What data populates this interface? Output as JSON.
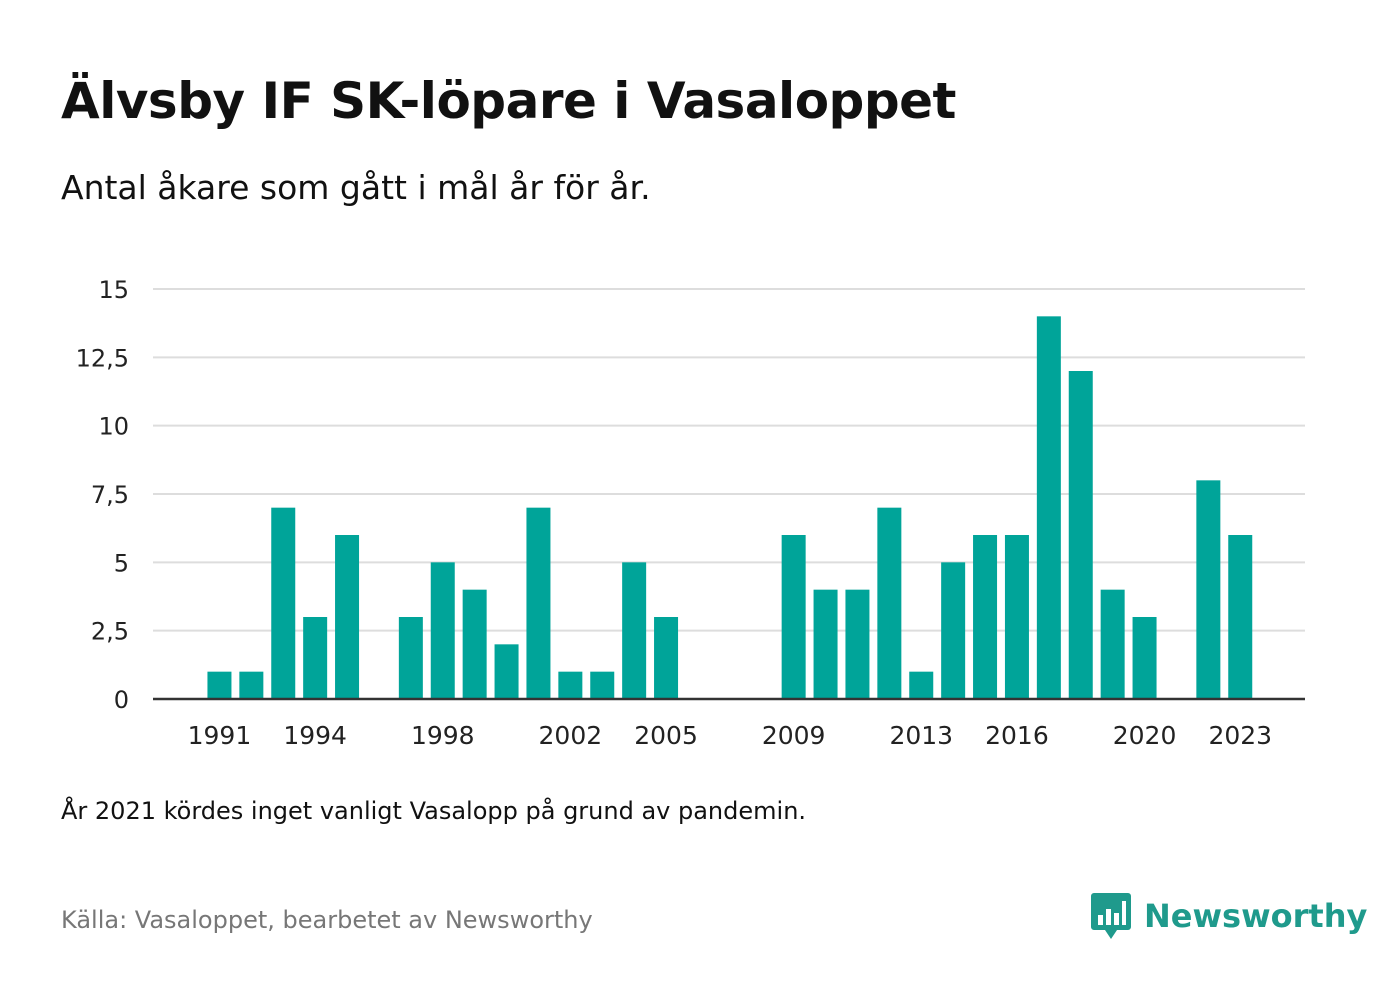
{
  "title": "Älvsby IF SK-löpare i Vasaloppet",
  "subtitle": "Antal åkare som gått i mål år för år.",
  "footnote": "År 2021 kördes inget vanligt Vasalopp på grund av pandemin.",
  "source": "Källa: Vasaloppet, bearbetet av Newsworthy",
  "brand": {
    "name": "Newsworthy",
    "icon": "bar-chart-badge-icon",
    "color": "#1f9a8c"
  },
  "chart_data": {
    "type": "bar",
    "x": [
      1991,
      1992,
      1993,
      1994,
      1995,
      1996,
      1997,
      1998,
      1999,
      2000,
      2001,
      2002,
      2003,
      2004,
      2005,
      2006,
      2007,
      2008,
      2009,
      2010,
      2011,
      2012,
      2013,
      2014,
      2015,
      2016,
      2017,
      2018,
      2019,
      2020,
      2021,
      2022,
      2023
    ],
    "values": [
      1,
      1,
      7,
      3,
      6,
      0,
      3,
      5,
      4,
      2,
      7,
      1,
      1,
      5,
      3,
      0,
      0,
      0,
      6,
      4,
      4,
      7,
      1,
      5,
      6,
      6,
      14,
      12,
      4,
      3,
      0,
      8,
      6
    ],
    "xticks": [
      "1991",
      "1994",
      "1998",
      "2002",
      "2005",
      "2009",
      "2013",
      "2016",
      "2020",
      "2023"
    ],
    "yticks": [
      "0",
      "2,5",
      "5",
      "7,5",
      "10",
      "12,5",
      "15"
    ],
    "ylim": [
      0,
      15
    ],
    "grid": true,
    "bar_color": "#00a499",
    "grid_color": "#dddddd",
    "axis_color": "#333333"
  }
}
